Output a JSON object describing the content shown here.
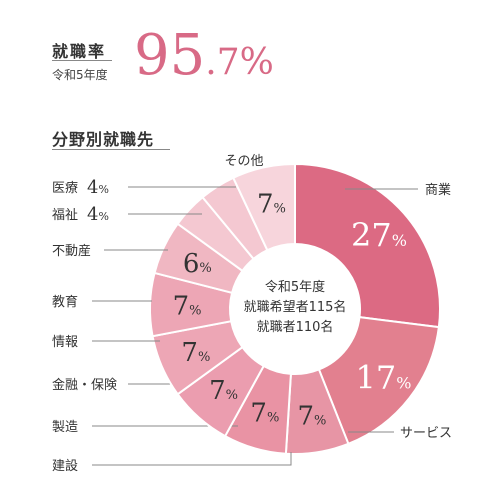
{
  "header": {
    "label": "就職率",
    "year": "令和5年度",
    "rate_integer": "95",
    "rate_decimal": ".7%"
  },
  "section_title": "分野別就職先",
  "chart_data": {
    "type": "pie",
    "donut": true,
    "unit": "%",
    "center_text": [
      "令和5年度",
      "就職希望者115名",
      "就職者110名"
    ],
    "slices": [
      {
        "label": "商業",
        "value": 27,
        "color": "#dc6a83"
      },
      {
        "label": "サービス",
        "value": 17,
        "color": "#e2808f"
      },
      {
        "label": "建設",
        "value": 7,
        "color": "#e795a5"
      },
      {
        "label": "製造",
        "value": 7,
        "color": "#e993a4"
      },
      {
        "label": "金融・保険",
        "value": 7,
        "color": "#eb9daf"
      },
      {
        "label": "情報",
        "value": 7,
        "color": "#eda6b5"
      },
      {
        "label": "教育",
        "value": 7,
        "color": "#eda6b5"
      },
      {
        "label": "不動産",
        "value": 6,
        "color": "#f0b7c2"
      },
      {
        "label": "福祉",
        "value": 4,
        "color": "#f4c8d1"
      },
      {
        "label": "医療",
        "value": 4,
        "color": "#f4c8d1"
      },
      {
        "label": "その他",
        "value": 7,
        "color": "#f7d5dc"
      }
    ]
  }
}
